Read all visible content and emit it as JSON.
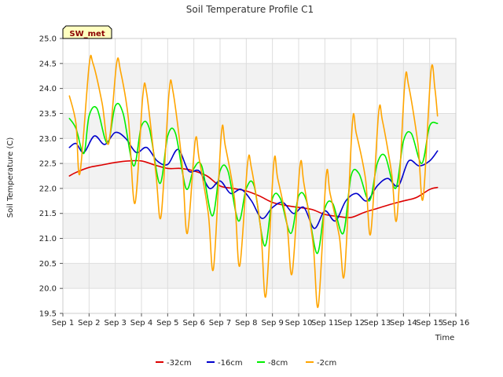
{
  "chart_data": {
    "type": "line",
    "title": "Soil Temperature Profile C1",
    "xlabel": "Time",
    "ylabel": "Soil Temperature (C)",
    "badge": "SW_met",
    "xlim": [
      1,
      16
    ],
    "ylim": [
      19.5,
      25.0
    ],
    "x_ticks": [
      1,
      2,
      3,
      4,
      5,
      6,
      7,
      8,
      9,
      10,
      11,
      12,
      13,
      14,
      15,
      16
    ],
    "x_tick_labels": [
      "Sep 1",
      "Sep 2",
      "Sep 3",
      "Sep 4",
      "Sep 5",
      "Sep 6",
      "Sep 7",
      "Sep 8",
      "Sep 9",
      "Sep 10",
      "Sep 11",
      "Sep 12",
      "Sep 13",
      "Sep 14",
      "Sep 15",
      "Sep 16"
    ],
    "y_ticks": [
      19.5,
      20.0,
      20.5,
      21.0,
      21.5,
      22.0,
      22.5,
      23.0,
      23.5,
      24.0,
      24.5,
      25.0
    ],
    "y_tick_labels": [
      "19.5",
      "20.0",
      "20.5",
      "21.0",
      "21.5",
      "22.0",
      "22.5",
      "23.0",
      "23.5",
      "24.0",
      "24.5",
      "25.0"
    ],
    "grid": true,
    "legend_position": "bottom",
    "series": [
      {
        "name": "-32cm",
        "color": "#dd0000",
        "x": [
          1.25,
          1.5,
          2.0,
          2.5,
          3.0,
          3.5,
          4.0,
          4.5,
          5.0,
          5.5,
          6.0,
          6.5,
          7.0,
          7.5,
          8.0,
          8.5,
          9.0,
          9.5,
          10.0,
          10.5,
          11.0,
          11.5,
          12.0,
          12.5,
          13.0,
          13.5,
          14.0,
          14.5,
          15.0,
          15.3
        ],
        "y": [
          22.25,
          22.32,
          22.42,
          22.47,
          22.52,
          22.55,
          22.55,
          22.47,
          22.4,
          22.4,
          22.35,
          22.25,
          22.05,
          22.0,
          21.95,
          21.85,
          21.72,
          21.66,
          21.62,
          21.58,
          21.48,
          21.44,
          21.42,
          21.52,
          21.6,
          21.68,
          21.75,
          21.82,
          21.98,
          22.02
        ]
      },
      {
        "name": "-16cm",
        "color": "#0000cc",
        "x": [
          1.25,
          1.5,
          1.8,
          2.2,
          2.6,
          3.0,
          3.4,
          3.8,
          4.2,
          4.6,
          5.0,
          5.4,
          5.8,
          6.2,
          6.6,
          7.0,
          7.4,
          7.8,
          8.2,
          8.6,
          9.0,
          9.4,
          9.8,
          10.2,
          10.6,
          11.0,
          11.4,
          11.8,
          12.2,
          12.6,
          13.0,
          13.4,
          13.8,
          14.2,
          14.6,
          15.0,
          15.3
        ],
        "y": [
          22.82,
          22.9,
          22.72,
          23.05,
          22.88,
          23.12,
          23.0,
          22.72,
          22.82,
          22.55,
          22.48,
          22.78,
          22.35,
          22.35,
          22.0,
          22.15,
          21.9,
          21.98,
          21.75,
          21.4,
          21.62,
          21.72,
          21.5,
          21.62,
          21.2,
          21.55,
          21.35,
          21.75,
          21.9,
          21.75,
          22.05,
          22.2,
          22.05,
          22.55,
          22.45,
          22.55,
          22.75
        ]
      },
      {
        "name": "-8cm",
        "color": "#00ee00",
        "x": [
          1.25,
          1.5,
          1.8,
          2.0,
          2.3,
          2.7,
          3.0,
          3.3,
          3.7,
          4.0,
          4.3,
          4.7,
          5.0,
          5.3,
          5.7,
          6.0,
          6.3,
          6.7,
          7.0,
          7.3,
          7.7,
          8.0,
          8.3,
          8.7,
          9.0,
          9.3,
          9.7,
          10.0,
          10.3,
          10.7,
          11.0,
          11.3,
          11.7,
          12.0,
          12.3,
          12.7,
          13.0,
          13.3,
          13.7,
          14.0,
          14.3,
          14.7,
          15.0,
          15.3
        ],
        "y": [
          23.4,
          23.2,
          22.7,
          23.45,
          23.6,
          22.9,
          23.65,
          23.5,
          22.45,
          23.25,
          23.2,
          22.1,
          23.05,
          23.1,
          22.0,
          22.4,
          22.45,
          21.45,
          22.35,
          22.35,
          21.35,
          22.0,
          22.05,
          20.85,
          21.8,
          21.8,
          21.1,
          21.85,
          21.75,
          20.7,
          21.6,
          21.7,
          21.1,
          22.25,
          22.3,
          21.75,
          22.5,
          22.65,
          22.0,
          22.95,
          23.1,
          22.5,
          23.25,
          23.3
        ]
      },
      {
        "name": "-2cm",
        "color": "#ffa500",
        "x": [
          1.25,
          1.5,
          1.65,
          2.0,
          2.15,
          2.5,
          2.75,
          3.05,
          3.2,
          3.5,
          3.75,
          4.05,
          4.2,
          4.55,
          4.75,
          5.05,
          5.2,
          5.55,
          5.75,
          6.05,
          6.2,
          6.55,
          6.75,
          7.05,
          7.2,
          7.55,
          7.75,
          8.05,
          8.2,
          8.55,
          8.75,
          9.05,
          9.2,
          9.55,
          9.75,
          10.05,
          10.2,
          10.55,
          10.75,
          11.05,
          11.2,
          11.55,
          11.75,
          12.05,
          12.2,
          12.55,
          12.75,
          13.05,
          13.2,
          13.55,
          13.75,
          14.05,
          14.2,
          14.55,
          14.75,
          15.05,
          15.2,
          15.3
        ],
        "y": [
          23.85,
          23.3,
          22.3,
          24.45,
          24.5,
          23.7,
          22.9,
          24.5,
          24.35,
          23.4,
          21.7,
          23.85,
          23.9,
          22.3,
          21.45,
          23.9,
          23.95,
          22.5,
          21.1,
          22.95,
          22.6,
          21.5,
          20.4,
          23.1,
          22.85,
          21.8,
          20.45,
          22.5,
          22.4,
          21.2,
          19.85,
          22.5,
          22.2,
          21.3,
          20.3,
          22.45,
          22.1,
          20.9,
          19.65,
          22.25,
          21.9,
          21.05,
          20.3,
          23.3,
          23.1,
          22.2,
          21.1,
          23.5,
          23.35,
          22.3,
          21.4,
          24.1,
          24.05,
          22.9,
          21.8,
          24.35,
          24.0,
          23.45
        ]
      }
    ]
  }
}
